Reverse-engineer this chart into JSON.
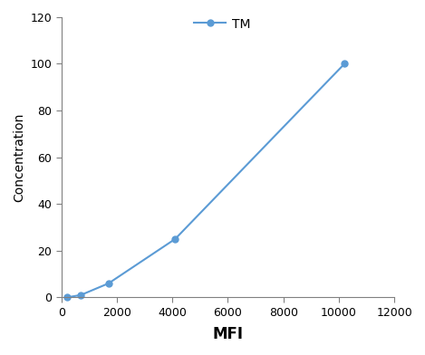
{
  "x": [
    200,
    700,
    1700,
    4100,
    10200
  ],
  "y": [
    0,
    1,
    6,
    25,
    100
  ],
  "line_color": "#5b9bd5",
  "marker": "o",
  "marker_size": 5,
  "legend_label": "TM",
  "xlabel": "MFI",
  "ylabel": "Concentration",
  "xlim": [
    0,
    12000
  ],
  "ylim": [
    0,
    120
  ],
  "xticks": [
    0,
    2000,
    4000,
    6000,
    8000,
    10000,
    12000
  ],
  "yticks": [
    0,
    20,
    40,
    60,
    80,
    100,
    120
  ],
  "xlabel_fontsize": 12,
  "ylabel_fontsize": 10,
  "tick_fontsize": 9,
  "legend_fontsize": 10,
  "background_color": "#ffffff",
  "spine_color": "#808080"
}
